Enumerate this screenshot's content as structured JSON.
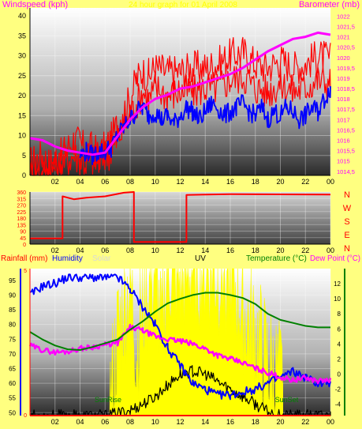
{
  "chart_data": [
    {
      "type": "line",
      "title": "24 hour graph for 01 April 2008",
      "ylabel_left": "Windspeed (kph)",
      "ylabel_right": "Barometer (mb)",
      "x_ticks": [
        "02",
        "04",
        "06",
        "08",
        "10",
        "12",
        "14",
        "16",
        "18",
        "20",
        "22",
        "00"
      ],
      "y_left_ticks": [
        0,
        5,
        10,
        15,
        20,
        25,
        30,
        35,
        40
      ],
      "y_left_range": [
        0,
        42
      ],
      "y_right_ticks": [
        "1014,5",
        "1015",
        "1015,5",
        "1016",
        "1016,5",
        "1017",
        "1017,5",
        "1018",
        "1018,5",
        "1019",
        "1019,5",
        "1020",
        "1020,5",
        "1021",
        "1021,5",
        "1022"
      ],
      "y_right_range": [
        1014.3,
        1022.4
      ],
      "series": [
        {
          "color": "#ff0000",
          "x": [
            0,
            0.5,
            1,
            1.5,
            2,
            2.5,
            3,
            3.5,
            4,
            4.5,
            5,
            5.5,
            6,
            6.5,
            7,
            7.5,
            8,
            8.5,
            9,
            9.5,
            10,
            11,
            12,
            13,
            14,
            15,
            16,
            17,
            18,
            19,
            20,
            21,
            22,
            23,
            24
          ],
          "y": [
            3,
            4,
            5,
            3,
            4,
            5,
            7,
            9,
            8,
            6,
            7,
            5,
            7,
            9,
            13,
            16,
            19,
            24,
            26,
            25,
            27,
            26,
            26,
            27,
            27,
            28,
            30,
            31,
            28,
            27,
            29,
            27,
            28,
            30,
            29
          ]
        },
        {
          "color": "#ff0000",
          "x": [
            0,
            0.5,
            1,
            1.5,
            2,
            2.5,
            3,
            3.5,
            4,
            4.5,
            5,
            5.5,
            6,
            6.5,
            7,
            7.5,
            8,
            8.5,
            9,
            9.5,
            10,
            11,
            12,
            13,
            14,
            15,
            16,
            17,
            18,
            19,
            20,
            21,
            22,
            23,
            24
          ],
          "y": [
            0,
            1,
            0,
            1,
            2,
            3,
            4,
            5,
            4,
            3,
            4,
            3,
            5,
            6,
            9,
            12,
            15,
            18,
            21,
            19,
            22,
            20,
            21,
            21,
            22,
            22,
            24,
            25,
            22,
            21,
            23,
            21,
            22,
            24,
            23
          ]
        },
        {
          "color": "#0000ff",
          "x": [
            4,
            4.5,
            5,
            5.5,
            6,
            6.5,
            7,
            7.5,
            8,
            8.5,
            9,
            9.5,
            10,
            10.5,
            11,
            11.5,
            12,
            12.5,
            13,
            13.5,
            14,
            14.5,
            15,
            15.5,
            16,
            16.5,
            17,
            17.5,
            18,
            18.5,
            19,
            19.5,
            20,
            20.5,
            21,
            21.5,
            22,
            22.5,
            23,
            23.5,
            24
          ],
          "y": [
            5,
            6,
            5,
            6,
            6,
            7,
            10,
            12,
            14,
            16,
            17,
            15,
            16,
            14,
            15,
            13,
            15,
            17,
            16,
            14,
            16,
            18,
            17,
            15,
            16,
            17,
            18,
            16,
            15,
            17,
            14,
            16,
            15,
            17,
            16,
            14,
            15,
            17,
            16,
            19,
            22
          ]
        },
        {
          "color": "#ff00ff",
          "x": [
            0,
            1,
            2,
            3,
            4,
            5,
            6,
            7,
            8,
            9,
            10,
            11,
            12,
            13,
            14,
            15,
            16,
            17,
            18,
            19,
            20,
            21,
            22,
            23,
            24
          ],
          "y": [
            1016.1,
            1016.0,
            1015.7,
            1015.5,
            1015.4,
            1015.3,
            1015.4,
            1016.2,
            1017.0,
            1017.6,
            1018.0,
            1018.2,
            1018.5,
            1018.6,
            1018.8,
            1019.0,
            1019.2,
            1019.5,
            1019.9,
            1020.3,
            1020.6,
            1020.9,
            1021.0,
            1021.2,
            1021.1
          ]
        }
      ]
    },
    {
      "type": "line",
      "x_ticks": [
        "02",
        "04",
        "06",
        "08",
        "10",
        "12",
        "14",
        "16",
        "18",
        "20",
        "22",
        "00"
      ],
      "y_ticks": [
        0,
        45,
        90,
        135,
        180,
        225,
        270,
        315,
        360
      ],
      "y_range": [
        0,
        360
      ],
      "compass": [
        "N",
        "W",
        "S",
        "E",
        "N"
      ],
      "series": [
        {
          "color": "#ff0000",
          "x": [
            0,
            2.6,
            2.6,
            3.5,
            4.5,
            6.0,
            7.5,
            8.3,
            8.3,
            12.5,
            12.5,
            16,
            24
          ],
          "y": [
            40,
            40,
            330,
            310,
            320,
            330,
            355,
            360,
            15,
            15,
            340,
            345,
            342
          ]
        }
      ]
    },
    {
      "type": "line",
      "labels": [
        "Rainfall (mm)",
        "Humidity",
        "Solar",
        "UV",
        "Temperature (°C)",
        "Dew Point (°C)"
      ],
      "x_ticks": [
        "02",
        "04",
        "06",
        "08",
        "10",
        "12",
        "14",
        "16",
        "18",
        "20",
        "22",
        "00"
      ],
      "y_left_ticks": [
        50,
        55,
        60,
        65,
        70,
        75,
        80,
        85,
        90,
        95
      ],
      "y_left_range": [
        49,
        99
      ],
      "y_right_ticks": [
        -4,
        -2,
        0,
        2,
        4,
        6,
        8,
        10,
        12
      ],
      "y_right_range": [
        -5.5,
        14
      ],
      "rain_ticks": [
        "0",
        "5"
      ],
      "sunrise_label": "SunRise",
      "sunset_label": "SunSet",
      "sunrise_hour": 6.3,
      "sunset_hour": 20.2,
      "series": [
        {
          "color": "#0000ff",
          "x": [
            0,
            1,
            2,
            3,
            4,
            5,
            6,
            7,
            8,
            9,
            10,
            11,
            12,
            13,
            14,
            15,
            16,
            17,
            18,
            19,
            20,
            21,
            22,
            23,
            24
          ],
          "y": [
            90,
            93,
            94,
            96,
            96,
            96,
            96,
            96,
            92,
            86,
            80,
            72,
            66,
            60,
            58,
            56,
            56,
            57,
            58,
            60,
            62,
            64,
            62,
            60,
            60
          ]
        },
        {
          "color": "#ff00ff",
          "x": [
            0,
            1,
            2,
            3,
            4,
            5,
            6,
            7,
            8,
            9,
            10,
            11,
            12,
            13,
            14,
            15,
            16,
            17,
            18,
            19,
            20,
            21,
            22,
            23,
            24
          ],
          "y": [
            3.8,
            3.2,
            2.9,
            3.0,
            3.4,
            3.6,
            3.9,
            4.1,
            6.2,
            5.8,
            5.0,
            4.6,
            4.4,
            4.0,
            3.4,
            2.5,
            2.0,
            1.5,
            0.8,
            0.2,
            -0.4,
            -0.8,
            -0.5,
            -0.9,
            -0.8
          ]
        },
        {
          "color": "#008000",
          "x": [
            0,
            1,
            2,
            3,
            4,
            5,
            6,
            7,
            8,
            9,
            10,
            11,
            12,
            13,
            14,
            15,
            16,
            17,
            18,
            19,
            20,
            21,
            22,
            23,
            24
          ],
          "y": [
            5.6,
            4.6,
            3.8,
            3.3,
            3.2,
            3.6,
            4.1,
            4.6,
            5.9,
            7.0,
            8.3,
            9.4,
            10.0,
            10.5,
            10.8,
            10.8,
            10.5,
            10.1,
            9.3,
            8.0,
            7.2,
            6.8,
            6.4,
            6.2,
            6.2
          ]
        },
        {
          "color": "#000000",
          "x": [
            0,
            6.2,
            7,
            8,
            9,
            10,
            11,
            12,
            13,
            14,
            15,
            16,
            17,
            18,
            19,
            20,
            24
          ],
          "y": [
            -5.5,
            -5.5,
            -5.2,
            -4.8,
            -4.0,
            -3.0,
            -1.5,
            0.0,
            0.4,
            0.0,
            -1.0,
            -2.0,
            -3.0,
            -4.0,
            -5.0,
            -5.5,
            -5.5
          ]
        },
        {
          "color": "#ffff00",
          "x": [
            6.3,
            7,
            8,
            8.5,
            9,
            10,
            10.5,
            11,
            12,
            13,
            14,
            15,
            16,
            17,
            18,
            19,
            20.2
          ],
          "y": [
            0.0,
            0.55,
            0.9,
            0.45,
            0.7,
            1.0,
            0.5,
            1.0,
            0.9,
            1.0,
            1.0,
            0.95,
            1.0,
            0.7,
            0.55,
            0.35,
            0.2
          ]
        }
      ]
    }
  ]
}
